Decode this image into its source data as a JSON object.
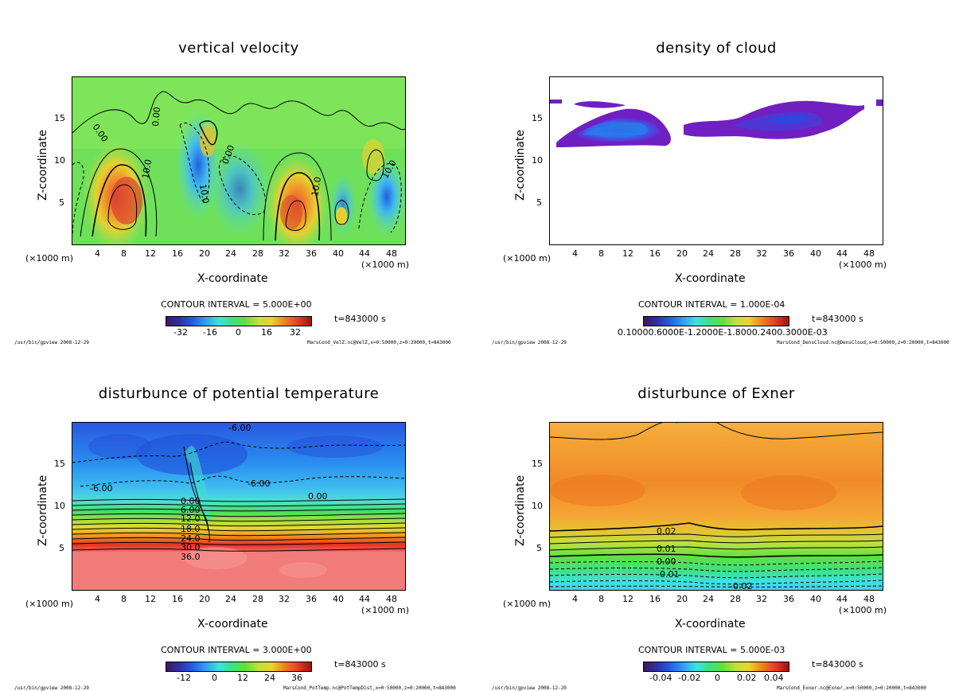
{
  "chart_data": [
    {
      "type": "heatmap",
      "title": "vertical velocity",
      "xlabel": "X-coordinate",
      "ylabel": "Z-coordinate",
      "x_unit": "(×1000 m)",
      "xlim": [
        0,
        50
      ],
      "ylim": [
        0,
        20
      ],
      "x_ticks": [
        4,
        8,
        12,
        16,
        20,
        24,
        28,
        32,
        36,
        40,
        44,
        48
      ],
      "y_ticks": [
        5,
        10,
        15
      ],
      "contour_interval": "CONTOUR INTERVAL = 5.000E+00",
      "time_label": "t=843000 s",
      "colorbar_ticks": [
        "-32",
        "-16",
        "0",
        "16",
        "32"
      ],
      "contour_labels": [
        "0.00",
        "0.00",
        "10.0",
        "10.0",
        "0.00",
        "10.0",
        "10.0"
      ],
      "footer_left": "/usr/bin/gpview  2008-12-29",
      "footer_right": "MarsCond_VelZ.nc@VelZ,x=0:50000,z=0:20000,t=843000"
    },
    {
      "type": "heatmap",
      "title": "density of cloud",
      "xlabel": "X-coordinate",
      "ylabel": "Z-coordinate",
      "x_unit": "(×1000 m)",
      "xlim": [
        0,
        50
      ],
      "ylim": [
        0,
        20
      ],
      "x_ticks": [
        4,
        8,
        12,
        16,
        20,
        24,
        28,
        32,
        36,
        40,
        44,
        48
      ],
      "y_ticks": [
        5,
        10,
        15
      ],
      "contour_interval": "CONTOUR INTERVAL = 1.000E-04",
      "time_label": "t=843000 s",
      "colorbar_ticks_text": "0.10000.6000E-1.2000E-1.8000.2400.3000E-03",
      "footer_left": "/usr/bin/gpview  2008-12-29",
      "footer_right": "MarsCond_DensCloud.nc@DensCloud,x=0:50000,z=0:20000,t=843000"
    },
    {
      "type": "heatmap",
      "title": "disturbunce of potential temperature",
      "xlabel": "X-coordinate",
      "ylabel": "Z-coordinate",
      "x_unit": "(×1000 m)",
      "xlim": [
        0,
        50
      ],
      "ylim": [
        0,
        20
      ],
      "x_ticks": [
        4,
        8,
        12,
        16,
        20,
        24,
        28,
        32,
        36,
        40,
        44,
        48
      ],
      "y_ticks": [
        5,
        10,
        15
      ],
      "contour_interval": "CONTOUR INTERVAL = 3.000E+00",
      "time_label": "t=843000 s",
      "colorbar_ticks": [
        "-12",
        "0",
        "12",
        "24",
        "36"
      ],
      "contour_labels": [
        "-6.00",
        "-6.00",
        "-6.00",
        "0.00",
        "0.00",
        "6.00",
        "12.0",
        "18.0",
        "24.0",
        "30.0",
        "36.0"
      ],
      "footer_left": "/usr/bin/gpview  2008-12-29",
      "footer_right": "MarsCond_PotTemp.nc@PotTempDist,x=0:50000,z=0:20000,t=843000"
    },
    {
      "type": "heatmap",
      "title": "disturbunce of Exner",
      "xlabel": "X-coordinate",
      "ylabel": "Z-coordinate",
      "x_unit": "(×1000 m)",
      "xlim": [
        0,
        50
      ],
      "ylim": [
        0,
        20
      ],
      "x_ticks": [
        4,
        8,
        12,
        16,
        20,
        24,
        28,
        32,
        36,
        40,
        44,
        48
      ],
      "y_ticks": [
        5,
        10,
        15
      ],
      "contour_interval": "CONTOUR INTERVAL = 5.000E-03",
      "time_label": "t=843000 s",
      "colorbar_ticks": [
        "-0.04",
        "-0.02",
        "0",
        "0.02",
        "0.04"
      ],
      "contour_labels": [
        "0.02",
        "0.01",
        "0.00",
        "-0.01",
        "-0.02"
      ],
      "footer_left": "/usr/bin/gpview  2008-12-29",
      "footer_right": "MarsCond_Exner.nc@Exner,x=0:50000,z=0:20000,t=843000"
    }
  ]
}
